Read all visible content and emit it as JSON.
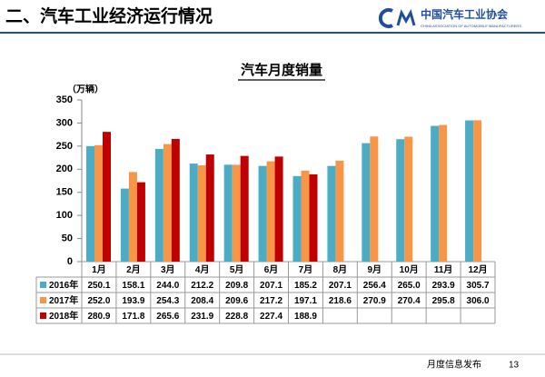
{
  "header": {
    "title": "二、汽车工业经济运行情况",
    "logo_text": "中国汽车工业协会",
    "logo_subtext": "CHINA ASSOCIATION OF AUTOMOBILE MANUFACTURERS"
  },
  "footer": {
    "text": "月度信息发布",
    "page": "13"
  },
  "chart_data": {
    "type": "bar",
    "title": "汽车月度销量",
    "y_label": "（万辆）",
    "categories": [
      "1月",
      "2月",
      "3月",
      "4月",
      "5月",
      "6月",
      "7月",
      "8月",
      "9月",
      "10月",
      "11月",
      "12月"
    ],
    "series": [
      {
        "name": "2016年",
        "color": "#4bacc6",
        "values": [
          250.1,
          158.1,
          244.0,
          212.2,
          209.8,
          207.1,
          185.2,
          207.1,
          256.4,
          265.0,
          293.9,
          305.7
        ],
        "value_labels": [
          "250.1",
          "158.1",
          "244.0",
          "212.2",
          "209.8",
          "207.1",
          "185.2",
          "207.1",
          "256.4",
          "265.0",
          "293.9",
          "305.7"
        ]
      },
      {
        "name": "2017年",
        "color": "#f79646",
        "values": [
          252.0,
          193.9,
          254.3,
          208.4,
          209.6,
          217.2,
          197.1,
          218.6,
          270.9,
          270.4,
          295.8,
          306.0
        ],
        "value_labels": [
          "252.0",
          "193.9",
          "254.3",
          "208.4",
          "209.6",
          "217.2",
          "197.1",
          "218.6",
          "270.9",
          "270.4",
          "295.8",
          "306.0"
        ]
      },
      {
        "name": "2018年",
        "color": "#c00000",
        "values": [
          280.9,
          171.8,
          265.6,
          231.9,
          228.8,
          227.4,
          188.9,
          null,
          null,
          null,
          null,
          null
        ],
        "value_labels": [
          "280.9",
          "171.8",
          "265.6",
          "231.9",
          "228.8",
          "227.4",
          "188.9",
          null,
          null,
          null,
          null,
          null
        ]
      }
    ],
    "ylim": [
      0,
      350
    ],
    "yticks": [
      0,
      50,
      100,
      150,
      200,
      250,
      300,
      350
    ]
  }
}
